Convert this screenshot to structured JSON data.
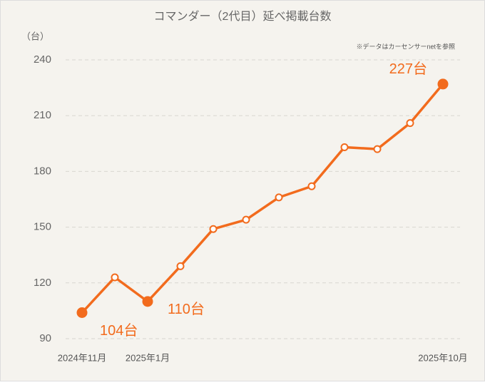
{
  "chart_data": {
    "type": "line",
    "title": "コマンダー（2代目）延べ掲載台数",
    "y_unit": "（台）",
    "note": "※データはカーセンサーnetを参照",
    "categories": [
      "2024年11月",
      null,
      "2025年1月",
      null,
      null,
      null,
      null,
      null,
      null,
      null,
      null,
      "2025年10月"
    ],
    "series": [
      {
        "name": "延べ掲載台数",
        "color": "#f26b1d",
        "values": [
          104,
          123,
          110,
          129,
          149,
          154,
          166,
          172,
          193,
          192,
          206,
          227
        ],
        "value_labels": [
          "104台",
          null,
          "110台",
          null,
          null,
          null,
          null,
          null,
          null,
          null,
          null,
          "227台"
        ]
      }
    ],
    "ylim": [
      90,
      240
    ],
    "yticks": [
      90,
      120,
      150,
      180,
      210,
      240
    ],
    "grid": true
  }
}
